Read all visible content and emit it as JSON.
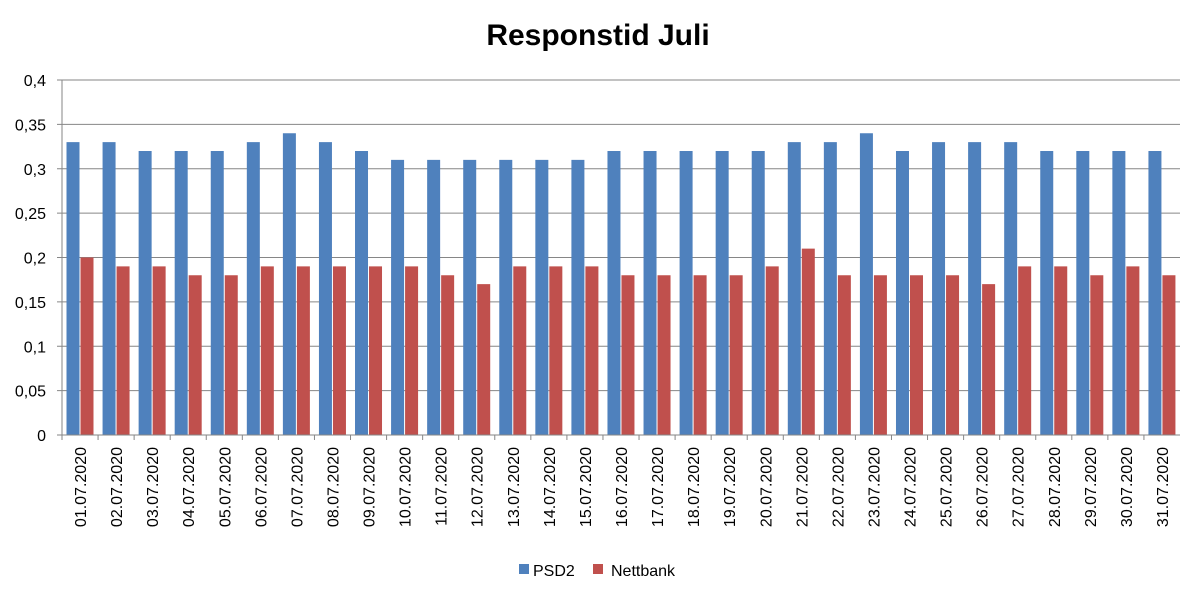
{
  "chart_data": {
    "type": "bar",
    "title": "Responstid Juli",
    "xlabel": "",
    "ylabel": "",
    "ylim": [
      0,
      0.4
    ],
    "yticks": [
      "0",
      "0,05",
      "0,1",
      "0,15",
      "0,2",
      "0,25",
      "0,3",
      "0,35",
      "0,4"
    ],
    "ytick_values": [
      0,
      0.05,
      0.1,
      0.15,
      0.2,
      0.25,
      0.3,
      0.35,
      0.4
    ],
    "grid": true,
    "legend_position": "bottom",
    "categories": [
      "01.07.2020",
      "02.07.2020",
      "03.07.2020",
      "04.07.2020",
      "05.07.2020",
      "06.07.2020",
      "07.07.2020",
      "08.07.2020",
      "09.07.2020",
      "10.07.2020",
      "11.07.2020",
      "12.07.2020",
      "13.07.2020",
      "14.07.2020",
      "15.07.2020",
      "16.07.2020",
      "17.07.2020",
      "18.07.2020",
      "19.07.2020",
      "20.07.2020",
      "21.07.2020",
      "22.07.2020",
      "23.07.2020",
      "24.07.2020",
      "25.07.2020",
      "26.07.2020",
      "27.07.2020",
      "28.07.2020",
      "29.07.2020",
      "30.07.2020",
      "31.07.2020"
    ],
    "series": [
      {
        "name": "PSD2",
        "color": "#4f81bd",
        "values": [
          0.33,
          0.33,
          0.32,
          0.32,
          0.32,
          0.33,
          0.34,
          0.33,
          0.32,
          0.31,
          0.31,
          0.31,
          0.31,
          0.31,
          0.31,
          0.32,
          0.32,
          0.32,
          0.32,
          0.32,
          0.33,
          0.33,
          0.34,
          0.32,
          0.33,
          0.33,
          0.33,
          0.32,
          0.32,
          0.32,
          0.32
        ]
      },
      {
        "name": "Nettbank",
        "color": "#c0504d",
        "values": [
          0.2,
          0.19,
          0.19,
          0.18,
          0.18,
          0.19,
          0.19,
          0.19,
          0.19,
          0.19,
          0.18,
          0.17,
          0.19,
          0.19,
          0.19,
          0.18,
          0.18,
          0.18,
          0.18,
          0.19,
          0.21,
          0.18,
          0.18,
          0.18,
          0.18,
          0.17,
          0.19,
          0.19,
          0.18,
          0.19,
          0.18
        ]
      }
    ]
  }
}
